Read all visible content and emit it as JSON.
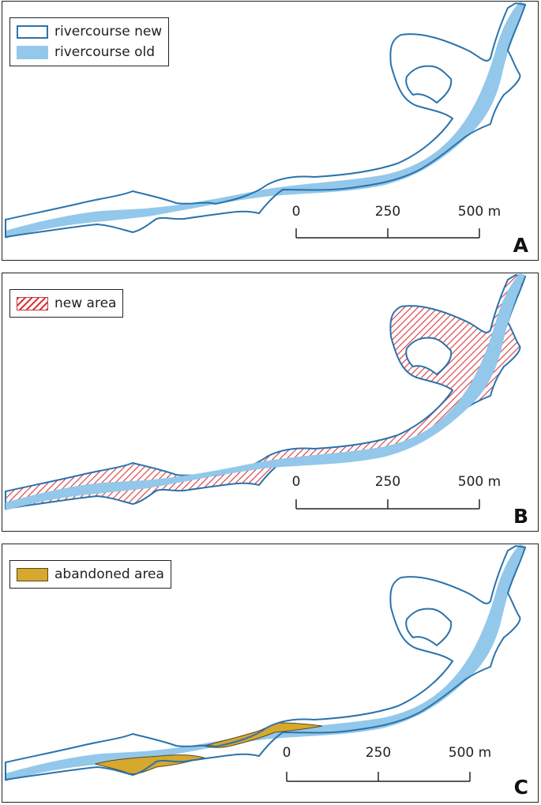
{
  "colors": {
    "new_outline": "#2a73ad",
    "old_fill": "#93c8ea",
    "new_area_hatch": "#d9363c",
    "abandoned_fill": "#d6a82d"
  },
  "panels": [
    {
      "letter": "A",
      "legend": [
        {
          "label": "rivercourse new",
          "swatch": "outline-blue"
        },
        {
          "label": "rivercourse old",
          "swatch": "fill-light-blue"
        }
      ],
      "scale": {
        "ticks": [
          "0",
          "250",
          "500 m"
        ]
      }
    },
    {
      "letter": "B",
      "legend": [
        {
          "label": "new area",
          "swatch": "red-hatch"
        }
      ],
      "scale": {
        "ticks": [
          "0",
          "250",
          "500 m"
        ]
      }
    },
    {
      "letter": "C",
      "legend": [
        {
          "label": "abandoned area",
          "swatch": "fill-ochre"
        }
      ],
      "scale": {
        "ticks": [
          "0",
          "250",
          "500 m"
        ]
      }
    }
  ]
}
